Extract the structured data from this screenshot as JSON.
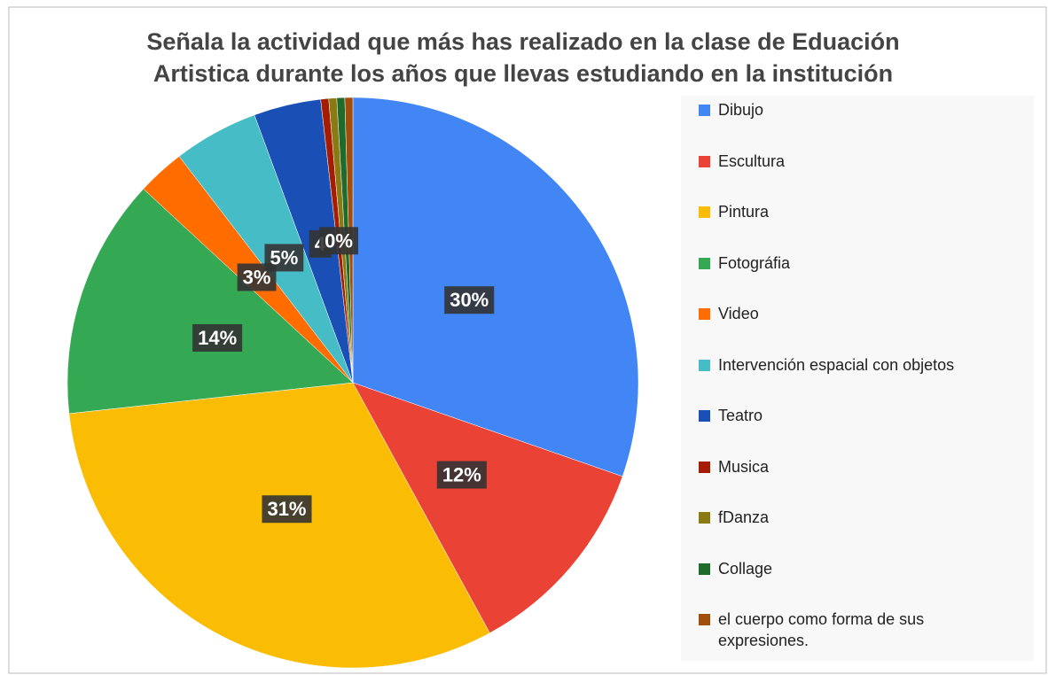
{
  "chart_data": {
    "type": "pie",
    "title": [
      "Señala la actividad que más has realizado en la clase de Eduación",
      "Artistica durante los años que llevas estudiando en la institución"
    ],
    "categories": [
      "Dibujo",
      "Escultura",
      "Pintura",
      "Fotográfia",
      "Video",
      "Intervención espacial con objetos",
      "Teatro",
      "Musica",
      "fDanza",
      "Collage",
      "el cuerpo como forma de sus expresiones."
    ],
    "values": [
      30.3,
      11.7,
      31.2,
      13.6,
      2.7,
      4.8,
      3.8,
      0.45,
      0.45,
      0.45,
      0.45
    ],
    "value_labels": [
      "30%",
      "12%",
      "31%",
      "14%",
      "3%",
      "5%",
      "4",
      "0%",
      null,
      null,
      null
    ],
    "colors": [
      "#4285f4",
      "#ea4335",
      "#fbbc04",
      "#34a853",
      "#ff6d01",
      "#46bdc6",
      "#1a4fb5",
      "#a61c00",
      "#8a7a14",
      "#1e6b2c",
      "#a14d0b"
    ],
    "legend": "right"
  }
}
